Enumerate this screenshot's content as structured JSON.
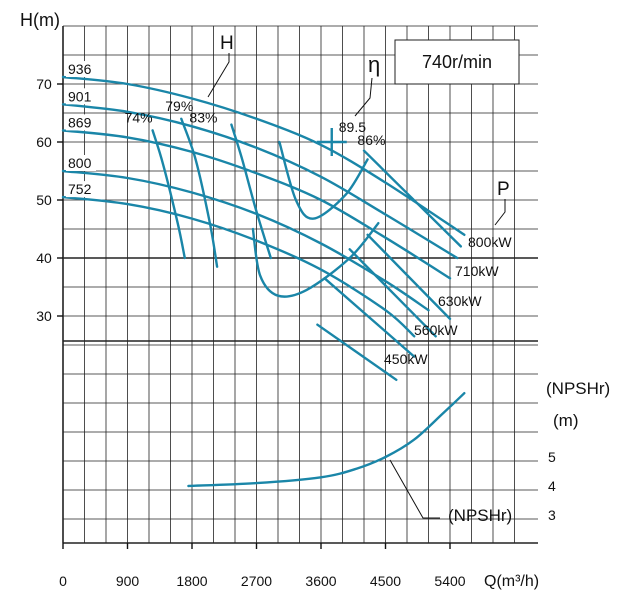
{
  "chart_data": {
    "type": "line",
    "speed_label": "740r/min",
    "head_axis": {
      "label": "H(m)",
      "ticks": [
        30,
        40,
        50,
        60,
        70
      ],
      "range": [
        25,
        75
      ]
    },
    "npsh_axis": {
      "label": "(NPSHr)",
      "unit": "(m)",
      "ticks": [
        3,
        4,
        5
      ],
      "range": [
        2.5,
        7.5
      ]
    },
    "x_axis": {
      "label": "Q(m³/h)",
      "ticks": [
        0,
        900,
        1800,
        2700,
        3600,
        4500,
        5400
      ],
      "range": [
        0,
        5800
      ]
    },
    "grid": true,
    "group_labels": {
      "head": "H",
      "efficiency": "η",
      "power": "P",
      "npsh": "(NPSHr)"
    },
    "head_curves": [
      {
        "name": "936",
        "x": [
          0,
          900,
          1800,
          2700,
          3600,
          4500,
          5600
        ],
        "y": [
          71.2,
          70,
          67.5,
          64,
          59.5,
          53,
          44
        ]
      },
      {
        "name": "901",
        "x": [
          0,
          900,
          1800,
          2700,
          3600,
          4500,
          5500
        ],
        "y": [
          66.5,
          65.2,
          62.7,
          59,
          54,
          47.5,
          40
        ]
      },
      {
        "name": "869",
        "x": [
          0,
          900,
          1800,
          2700,
          3600,
          4500,
          5400
        ],
        "y": [
          62,
          60.8,
          58.3,
          54.6,
          50,
          43.5,
          36.5
        ]
      },
      {
        "name": "800",
        "x": [
          0,
          900,
          1800,
          2700,
          3600,
          4500,
          5100
        ],
        "y": [
          55,
          53.8,
          51.3,
          47.6,
          42.5,
          36,
          31
        ]
      },
      {
        "name": "752",
        "x": [
          0,
          900,
          1800,
          2700,
          3600,
          4500,
          4900
        ],
        "y": [
          50.5,
          49.3,
          46.8,
          43,
          38,
          31,
          26.5
        ]
      }
    ],
    "efficiency_contours": [
      {
        "name": "74%",
        "x": [
          1250,
          1400,
          1600,
          1700
        ],
        "y": [
          62,
          56,
          46,
          40
        ]
      },
      {
        "name": "79%",
        "x": [
          1650,
          1850,
          2050,
          2150
        ],
        "y": [
          64,
          57,
          46,
          38.5
        ]
      },
      {
        "name": "83%",
        "x": [
          2350,
          2500,
          2700,
          2900
        ],
        "y": [
          63,
          57,
          48,
          40
        ]
      },
      {
        "name": "86%",
        "x": [
          3020,
          3250,
          3500,
          3950,
          4250
        ],
        "y": [
          60,
          50,
          46.8,
          51,
          57
        ]
      },
      {
        "name": "",
        "x": [
          2650,
          2750,
          3000,
          3400,
          4000,
          4400
        ],
        "y": [
          45,
          37,
          33.5,
          34.5,
          40,
          46
        ]
      }
    ],
    "efficiency_point": {
      "label": "89.5",
      "x": 3750,
      "y": 60
    },
    "power_curves": [
      {
        "name": "800kW",
        "x": [
          4200,
          5550
        ],
        "y": [
          58.5,
          42
        ]
      },
      {
        "name": "710kW",
        "x": [
          4250,
          5400
        ],
        "y": [
          44,
          29.5
        ]
      },
      {
        "name": "630kW",
        "x": [
          4000,
          5200
        ],
        "y": [
          41.5,
          26.5
        ]
      },
      {
        "name": "560kW",
        "x": [
          3650,
          4900
        ],
        "y": [
          36.5,
          23
        ]
      },
      {
        "name": "450kW",
        "x": [
          3550,
          4650
        ],
        "y": [
          28.5,
          19
        ]
      }
    ],
    "npsh_curve": {
      "name": "(NPSHr)",
      "x": [
        1750,
        2700,
        3600,
        4100,
        4500,
        4900,
        5300,
        5600
      ],
      "y": [
        4.0,
        4.1,
        4.3,
        4.6,
        5.0,
        5.6,
        6.5,
        7.2
      ]
    }
  }
}
